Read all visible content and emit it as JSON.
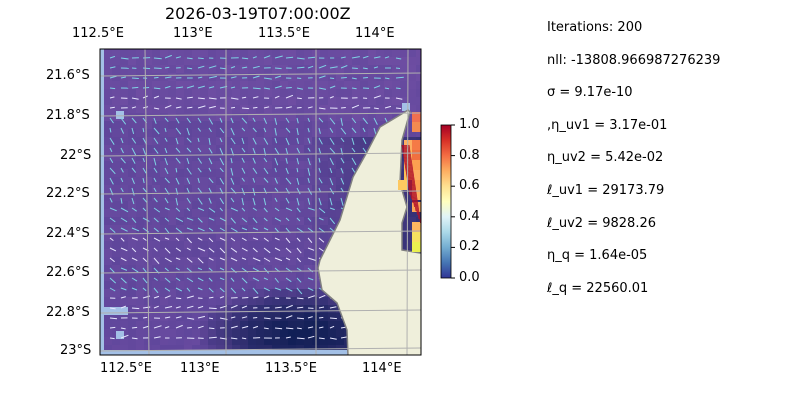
{
  "title": "2026-03-19T07:00:00Z",
  "map": {
    "lon_ticks_top": [
      "112.5°E",
      "113°E",
      "113.5°E",
      "114°E"
    ],
    "lon_ticks_bottom": [
      "112.5°E",
      "113°E",
      "113.5°E",
      "114°E"
    ],
    "lat_ticks": [
      "21.6°S",
      "21.8°S",
      "22°S",
      "22.2°S",
      "22.4°S",
      "22.6°S",
      "22.8°S",
      "23°S"
    ],
    "colors": {
      "ocean": "#a3c0e6",
      "land": "#efefdb",
      "coast": "#808080",
      "grid": "#b0b0b0",
      "field": "#5b3f99",
      "arrows": "#7fd4e6"
    }
  },
  "colorbar": {
    "ticks": [
      "0.0",
      "0.2",
      "0.4",
      "0.6",
      "0.8",
      "1.0"
    ],
    "range": [
      0.0,
      1.0
    ],
    "colormap": "RdYlBu_r"
  },
  "stats": [
    "Iterations: 200",
    "nll: -13808.966987276239",
    "σ = 9.17e-10",
    ",η_uv1 = 3.17e-01",
    "η_uv2 = 5.42e-02",
    "ℓ_uv1 = 29173.79",
    "ℓ_uv2 = 9828.26",
    "η_q = 1.64e-05",
    "ℓ_q = 22560.01"
  ]
}
